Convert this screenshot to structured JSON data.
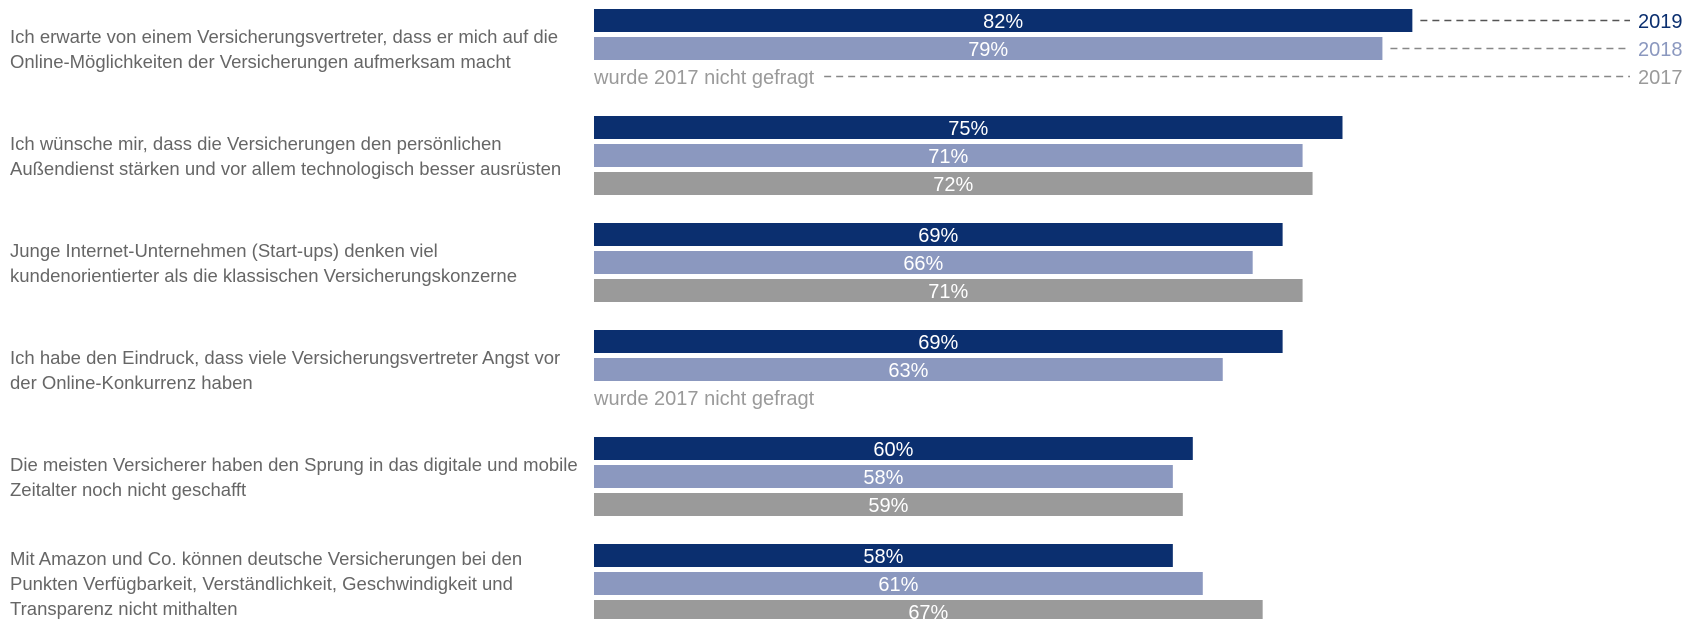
{
  "chart_data": {
    "type": "bar",
    "orientation": "horizontal",
    "categories": [
      "Ich erwarte von einem Versicherungsvertreter, dass er mich auf die Online-Möglichkeiten der Versicherungen aufmerksam macht",
      "Ich wünsche mir, dass die Versicherungen den persönlichen Außendienst stärken und vor allem technologisch besser ausrüsten",
      "Junge Internet-Unternehmen (Start-ups) denken viel kundenorientierter als die klassischen Versicherungskonzerne",
      "Ich habe den Eindruck, dass viele Versicherungsvertreter Angst vor der Online-Konkurrenz haben",
      "Die meisten Versicherer haben den Sprung in das digitale und mobile Zeitalter noch nicht geschafft",
      "Mit Amazon und Co. können deutsche Versicherungen bei den Punkten Verfügbarkeit, Verständlichkeit, Geschwindigkeit und Transparenz nicht mithalten"
    ],
    "series": [
      {
        "name": "2019",
        "color": "#0b2f6f",
        "values": [
          82,
          75,
          69,
          69,
          60,
          58
        ],
        "value_labels": [
          "82%",
          "75%",
          "69%",
          "69%",
          "60%",
          "58%"
        ]
      },
      {
        "name": "2018",
        "color": "#8b98bf",
        "values": [
          79,
          71,
          66,
          63,
          58,
          61
        ],
        "value_labels": [
          "79%",
          "71%",
          "66%",
          "63%",
          "58%",
          "61%"
        ]
      },
      {
        "name": "2017",
        "color": "#9a9a9a",
        "values": [
          null,
          72,
          71,
          null,
          59,
          67
        ],
        "value_labels": [
          null,
          "72%",
          "71%",
          null,
          "59%",
          "67%"
        ]
      }
    ],
    "missing_label": "wurde 2017 nicht gefragt"
  }
}
